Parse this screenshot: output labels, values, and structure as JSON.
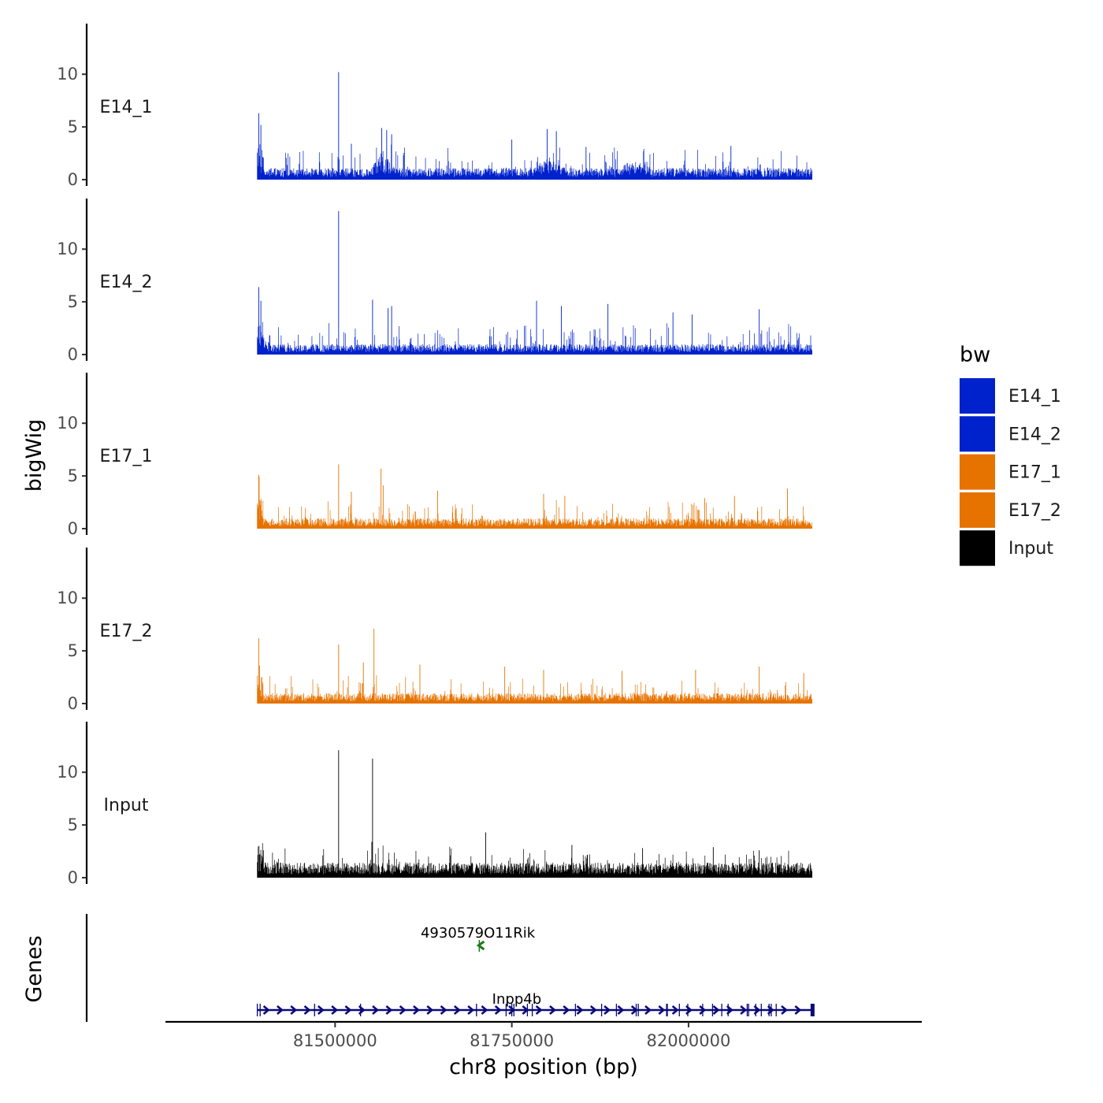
{
  "chart_data": {
    "type": "area",
    "ylabel": "bigWig",
    "genes_ylabel": "Genes",
    "xlabel": "chr8 position (bp)",
    "xlim": [
      81260000,
      82330000
    ],
    "xticks": [
      81500000,
      81750000,
      82000000
    ],
    "xtick_labels": [
      "81500000",
      "81750000",
      "82000000"
    ],
    "ylim": [
      0,
      14.8
    ],
    "yticks": [
      0,
      5,
      10
    ],
    "ytick_labels": [
      "0",
      "5",
      "10"
    ],
    "data_range": [
      81390000,
      82175000
    ],
    "tracks": [
      {
        "name": "E14_1",
        "color": "#0022CC",
        "baseline": 1.0,
        "noise": 1.3,
        "spikes": [
          [
            81392000,
            6.3
          ],
          [
            81395000,
            5.2
          ],
          [
            81505000,
            10.2
          ],
          [
            81523000,
            3.4
          ],
          [
            81566000,
            4.9
          ],
          [
            81573000,
            4.7
          ],
          [
            81580000,
            4.3
          ],
          [
            81750000,
            3.8
          ],
          [
            81800000,
            4.8
          ],
          [
            81813000,
            4.6
          ],
          [
            81855000,
            3.1
          ],
          [
            82060000,
            3.2
          ]
        ],
        "bumps": [
          [
            81568000,
            12000,
            1.8
          ],
          [
            81800000,
            18000,
            1.2
          ],
          [
            81920000,
            25000,
            0.8
          ]
        ]
      },
      {
        "name": "E14_2",
        "color": "#0022CC",
        "baseline": 0.9,
        "noise": 1.3,
        "spikes": [
          [
            81392000,
            6.4
          ],
          [
            81395000,
            5.1
          ],
          [
            81505000,
            13.6
          ],
          [
            81553000,
            5.2
          ],
          [
            81575000,
            4.4
          ],
          [
            81580000,
            4.6
          ],
          [
            81785000,
            5.1
          ],
          [
            81820000,
            4.6
          ],
          [
            81886000,
            4.8
          ],
          [
            81978000,
            4.0
          ],
          [
            82005000,
            3.8
          ],
          [
            82100000,
            4.3
          ]
        ],
        "bumps": [
          [
            81395000,
            10000,
            1.0
          ]
        ]
      },
      {
        "name": "E17_1",
        "color": "#E67300",
        "baseline": 0.9,
        "noise": 1.1,
        "spikes": [
          [
            81392000,
            5.1
          ],
          [
            81392500,
            4.9
          ],
          [
            81505000,
            6.1
          ],
          [
            81523000,
            3.5
          ],
          [
            81565000,
            5.7
          ],
          [
            81568000,
            4.1
          ],
          [
            81645000,
            3.6
          ],
          [
            81795000,
            3.3
          ],
          [
            81825000,
            3.1
          ],
          [
            82023000,
            2.9
          ],
          [
            82065000,
            3.1
          ],
          [
            82140000,
            3.8
          ]
        ],
        "bumps": []
      },
      {
        "name": "E17_2",
        "color": "#E67300",
        "baseline": 0.9,
        "noise": 1.1,
        "spikes": [
          [
            81392000,
            6.2
          ],
          [
            81393000,
            3.6
          ],
          [
            81505000,
            5.6
          ],
          [
            81555000,
            7.1
          ],
          [
            81540000,
            3.9
          ],
          [
            81620000,
            3.7
          ],
          [
            81740000,
            3.5
          ],
          [
            81795000,
            3.2
          ],
          [
            81906000,
            3.1
          ],
          [
            82010000,
            3.2
          ],
          [
            82100000,
            3.5
          ],
          [
            82163000,
            2.9
          ]
        ],
        "bumps": []
      },
      {
        "name": "Input",
        "color": "#000000",
        "baseline": 1.3,
        "noise": 1.1,
        "spikes": [
          [
            81505000,
            12.1
          ],
          [
            81553000,
            11.3
          ],
          [
            81552000,
            3.4
          ],
          [
            81713000,
            4.3
          ],
          [
            81835000,
            3.1
          ],
          [
            81935000,
            2.8
          ],
          [
            82035000,
            2.9
          ],
          [
            82100000,
            2.6
          ]
        ],
        "bumps": []
      }
    ],
    "genes": [
      {
        "name": "4930579O11Rik",
        "strand": "-",
        "color": "#1A7A1A",
        "start": 81704000,
        "end": 81706500,
        "label_x": 81702000,
        "row": "upper"
      },
      {
        "name": "Inpp4b",
        "strand": "+",
        "color": "#0A0A7A",
        "start": 81390000,
        "end": 82176000,
        "label_x": 81757000,
        "row": "lower",
        "exons": [
          81390000,
          81394000,
          81471000,
          81536000,
          81700000,
          81742000,
          81750000,
          81753000,
          81772000,
          81779000,
          81840000,
          81877000,
          81898000,
          81926000,
          81929000,
          81969000,
          81970000,
          81987000,
          81999000,
          82020000,
          82034000,
          82047000,
          82056000,
          82083000,
          82085000,
          82095000,
          82103000,
          82114000,
          82117000,
          82124000,
          82175000,
          82176000
        ]
      }
    ],
    "legend": {
      "title": "bw",
      "position": "right",
      "items": [
        {
          "label": "E14_1",
          "color": "#0022CC"
        },
        {
          "label": "E14_2",
          "color": "#0022CC"
        },
        {
          "label": "E17_1",
          "color": "#E67300"
        },
        {
          "label": "E17_2",
          "color": "#E67300"
        },
        {
          "label": "Input",
          "color": "#000000"
        }
      ]
    }
  }
}
